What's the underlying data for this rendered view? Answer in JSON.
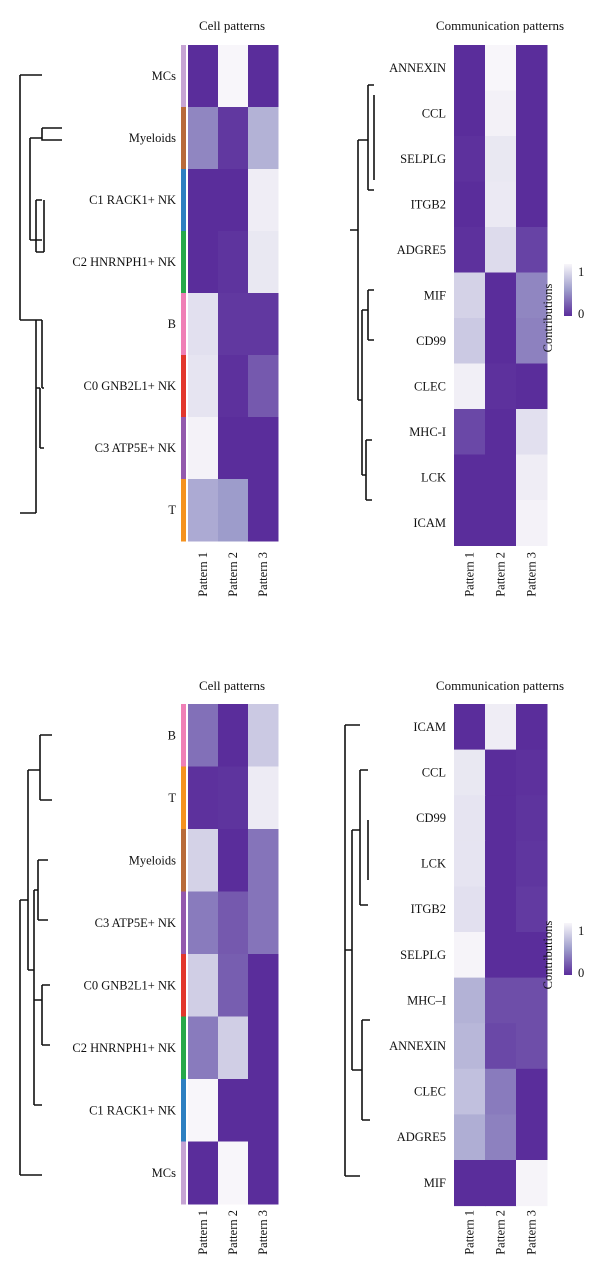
{
  "colors": {
    "low": "#5a2d9b",
    "mid": "#9d9ccb",
    "high": "#f8f6fa",
    "annotation": {
      "MCs": "#c6a4d4",
      "Myeloids": "#b86a3a",
      "C1 RACK1+ NK": "#2d7fc1",
      "C2 HNRNPH1+ NK": "#27a84a",
      "B": "#ef7fb6",
      "C0 GNB2L1+ NK": "#e2362c",
      "C3 ATP5E+ NK": "#9359ad",
      "T": "#f5921e"
    }
  },
  "legend": {
    "title": "Contributions",
    "max_label": "1",
    "min_label": "0"
  },
  "chart_data": [
    {
      "type": "heatmap",
      "panel": "top-left",
      "title": "Cell patterns",
      "columns": [
        "Pattern 1",
        "Pattern 2",
        "Pattern 3"
      ],
      "rows": [
        "MCs",
        "Myeloids",
        "C1 RACK1+ NK",
        "C2 HNRNPH1+ NK",
        "B",
        "C0 GNB2L1+ NK",
        "C3 ATP5E+ NK",
        "T"
      ],
      "values": [
        [
          0.0,
          1.0,
          0.0
        ],
        [
          0.4,
          0.05,
          0.62
        ],
        [
          0.0,
          0.0,
          0.95
        ],
        [
          0.0,
          0.03,
          0.92
        ],
        [
          0.88,
          0.05,
          0.05
        ],
        [
          0.9,
          0.02,
          0.2
        ],
        [
          0.98,
          0.0,
          0.0
        ],
        [
          0.58,
          0.5,
          0.0
        ]
      ]
    },
    {
      "type": "heatmap",
      "panel": "top-right",
      "title": "Communication patterns",
      "columns": [
        "Pattern 1",
        "Pattern 2",
        "Pattern 3"
      ],
      "rows": [
        "ANNEXIN",
        "CCL",
        "SELPLG",
        "ITGB2",
        "ADGRE5",
        "MIF",
        "CD99",
        "CLEC",
        "MHC-I",
        "LCK",
        "ICAM"
      ],
      "values": [
        [
          0.0,
          1.0,
          0.0
        ],
        [
          0.0,
          0.97,
          0.0
        ],
        [
          0.02,
          0.92,
          0.0
        ],
        [
          0.0,
          0.93,
          0.0
        ],
        [
          0.02,
          0.85,
          0.1
        ],
        [
          0.8,
          0.0,
          0.4
        ],
        [
          0.75,
          0.0,
          0.38
        ],
        [
          0.96,
          0.02,
          0.0
        ],
        [
          0.12,
          0.0,
          0.88
        ],
        [
          0.0,
          0.0,
          0.95
        ],
        [
          0.0,
          0.0,
          0.98
        ]
      ]
    },
    {
      "type": "heatmap",
      "panel": "bottom-left",
      "title": "Cell patterns",
      "columns": [
        "Pattern 1",
        "Pattern 2",
        "Pattern 3"
      ],
      "rows": [
        "B",
        "T",
        "Myeloids",
        "C3 ATP5E+ NK",
        "C0 GNB2L1+ NK",
        "C2 HNRNPH1+ NK",
        "C1 RACK1+ NK",
        "MCs"
      ],
      "values": [
        [
          0.3,
          0.0,
          0.75
        ],
        [
          0.02,
          0.03,
          0.94
        ],
        [
          0.8,
          0.0,
          0.32
        ],
        [
          0.35,
          0.2,
          0.32
        ],
        [
          0.78,
          0.22,
          0.0
        ],
        [
          0.35,
          0.78,
          0.0
        ],
        [
          1.0,
          0.0,
          0.0
        ],
        [
          0.0,
          1.0,
          0.0
        ]
      ]
    },
    {
      "type": "heatmap",
      "panel": "bottom-right",
      "title": "Communication patterns",
      "columns": [
        "Pattern 1",
        "Pattern 2",
        "Pattern 3"
      ],
      "rows": [
        "ICAM",
        "CCL",
        "CD99",
        "LCK",
        "ITGB2",
        "SELPLG",
        "MHC–I",
        "ANNEXIN",
        "CLEC",
        "ADGRE5",
        "MIF"
      ],
      "values": [
        [
          0.0,
          0.95,
          0.0
        ],
        [
          0.92,
          0.0,
          0.02
        ],
        [
          0.9,
          0.0,
          0.03
        ],
        [
          0.9,
          0.0,
          0.04
        ],
        [
          0.88,
          0.0,
          0.06
        ],
        [
          0.99,
          0.0,
          0.0
        ],
        [
          0.62,
          0.15,
          0.15
        ],
        [
          0.65,
          0.12,
          0.15
        ],
        [
          0.7,
          0.35,
          0.0
        ],
        [
          0.6,
          0.38,
          0.0
        ],
        [
          0.0,
          0.0,
          0.99
        ]
      ]
    }
  ]
}
